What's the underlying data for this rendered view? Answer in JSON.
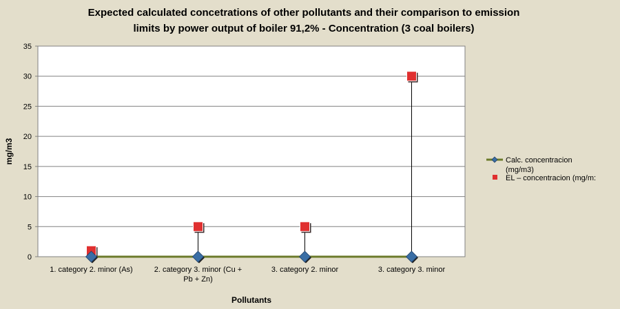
{
  "chart_data": {
    "type": "line",
    "title_lines": [
      "Expected calculated concetrations of other pollutants  and their comparison to emission",
      "limits by power output of boiler 91,2% - Concentration (3 coal boilers)"
    ],
    "xlabel": "Pollutants",
    "ylabel": "mg/m3",
    "ylim": [
      0,
      35
    ],
    "y_ticks": [
      "0",
      "5",
      "10",
      "15",
      "20",
      "25",
      "30",
      "35"
    ],
    "categories": [
      [
        "1. category 2. minor (As)"
      ],
      [
        "2. category 3. minor (Cu +",
        "Pb + Zn)"
      ],
      [
        "3. category 2. minor"
      ],
      [
        "3. category 3. minor"
      ]
    ],
    "grid": true,
    "legend_position": "right",
    "series": [
      {
        "name_lines": [
          "Calc. concentracion",
          "(mg/m3)"
        ],
        "values": [
          0,
          0,
          0,
          0
        ],
        "line_color": "#6b7a2a",
        "marker": "diamond",
        "marker_color": "#3a6ea5"
      },
      {
        "name_lines": [
          "EL – concentracion (mg/m:"
        ],
        "values": [
          1,
          5,
          5,
          30
        ],
        "marker": "square",
        "marker_color": "#e03030"
      }
    ],
    "drop_lines": true
  }
}
